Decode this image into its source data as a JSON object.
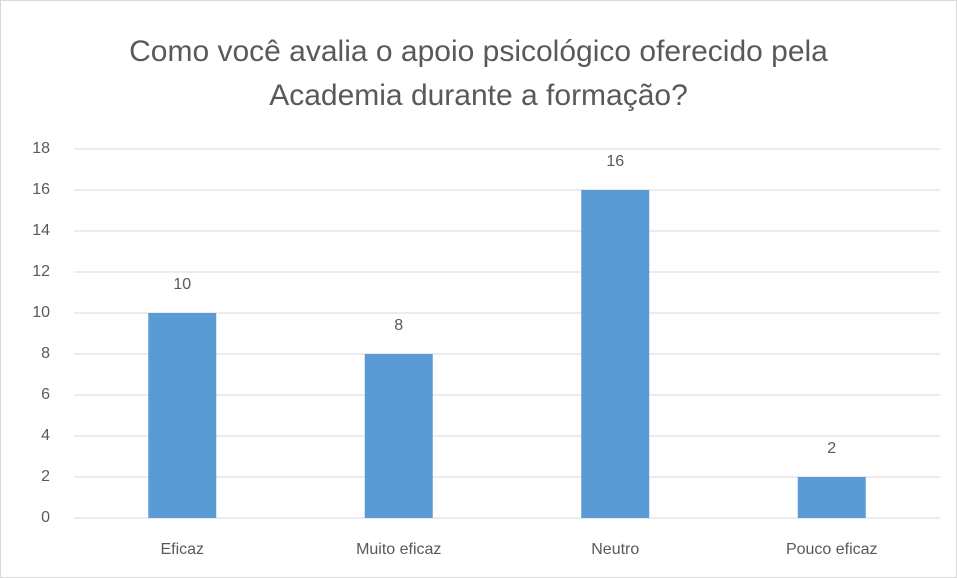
{
  "chart_data": {
    "type": "bar",
    "title": "Como você avalia o apoio psicológico oferecido pela Academia durante a formação?",
    "categories": [
      "Eficaz",
      "Muito eficaz",
      "Neutro",
      "Pouco eficaz"
    ],
    "values": [
      10,
      8,
      16,
      2
    ],
    "color": "#5b9bd5",
    "ylim": [
      0,
      18
    ],
    "yticks": [
      0,
      2,
      4,
      6,
      8,
      10,
      12,
      14,
      16,
      18
    ],
    "grid": true
  }
}
